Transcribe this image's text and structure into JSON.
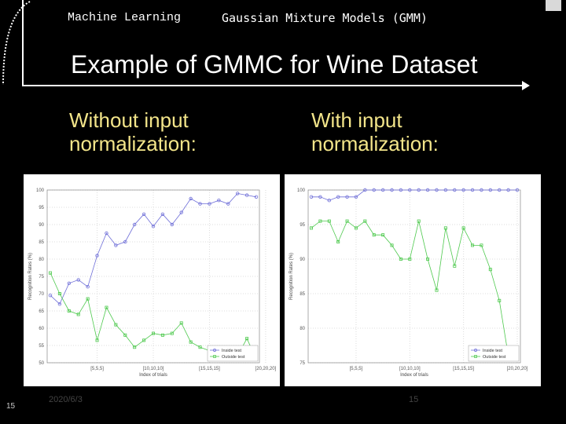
{
  "header": {
    "course": "Machine Learning",
    "topic": "Gaussian Mixture Models (GMM)"
  },
  "slide": {
    "title": "Example of GMMC for Wine Dataset",
    "left_subtitle": "Without input normalization:",
    "right_subtitle": "With input normalization:",
    "slide_number": "15",
    "date": "2020/6/3",
    "page_number": "15"
  },
  "chart_data": [
    {
      "type": "line",
      "xlabel": "Index of trials",
      "ylabel": "Recognition Rates (%)",
      "ylim": [
        50,
        100
      ],
      "yticks": [
        "100",
        "95",
        "90",
        "85",
        "80",
        "75",
        "70",
        "65",
        "60",
        "55",
        "50"
      ],
      "xtick_labels": [
        "[5,5,5]",
        "[10,10,10]",
        "[15,15,15]",
        "[20,20,20]"
      ],
      "grid": true,
      "legend_position": "bottom-right",
      "series": [
        {
          "name": "Inside test",
          "color": "#6f6fd8",
          "marker": "circle",
          "values": [
            69.5,
            67,
            73,
            74,
            72,
            81,
            87.5,
            84,
            85,
            90,
            93,
            89.5,
            93,
            90,
            93.5,
            97.5,
            96,
            96,
            97,
            96,
            99,
            98.5,
            98
          ]
        },
        {
          "name": "Outside test",
          "color": "#4ec94e",
          "marker": "square",
          "values": [
            76,
            70,
            65,
            64,
            68.5,
            56.5,
            66,
            61,
            58,
            54.5,
            56.5,
            58.5,
            58,
            58.5,
            61.5,
            56,
            54.5,
            53.5,
            53.5,
            52,
            52,
            57,
            51
          ]
        }
      ]
    },
    {
      "type": "line",
      "xlabel": "Index of trials",
      "ylabel": "Recognition Rates (%)",
      "ylim": [
        75,
        100
      ],
      "yticks": [
        "100",
        "95",
        "90",
        "85",
        "80",
        "75"
      ],
      "xtick_labels": [
        "[5,5,5]",
        "[10,10,10]",
        "[15,15,15]",
        "[20,20,20]"
      ],
      "grid": true,
      "legend_position": "bottom-right",
      "series": [
        {
          "name": "Inside test",
          "color": "#6f6fd8",
          "marker": "circle",
          "values": [
            99,
            99,
            98.5,
            99,
            99,
            99,
            100,
            100,
            100,
            100,
            100,
            100,
            100,
            100,
            100,
            100,
            100,
            100,
            100,
            100,
            100,
            100,
            100,
            100
          ]
        },
        {
          "name": "Outside test",
          "color": "#4ec94e",
          "marker": "square",
          "values": [
            94.5,
            95.5,
            95.5,
            92.5,
            95.5,
            94.5,
            95.5,
            93.5,
            93.5,
            92,
            90,
            90,
            95.5,
            90,
            85.5,
            94.5,
            89,
            94.5,
            92,
            92,
            88.5,
            84,
            76,
            75.5
          ]
        }
      ]
    }
  ]
}
